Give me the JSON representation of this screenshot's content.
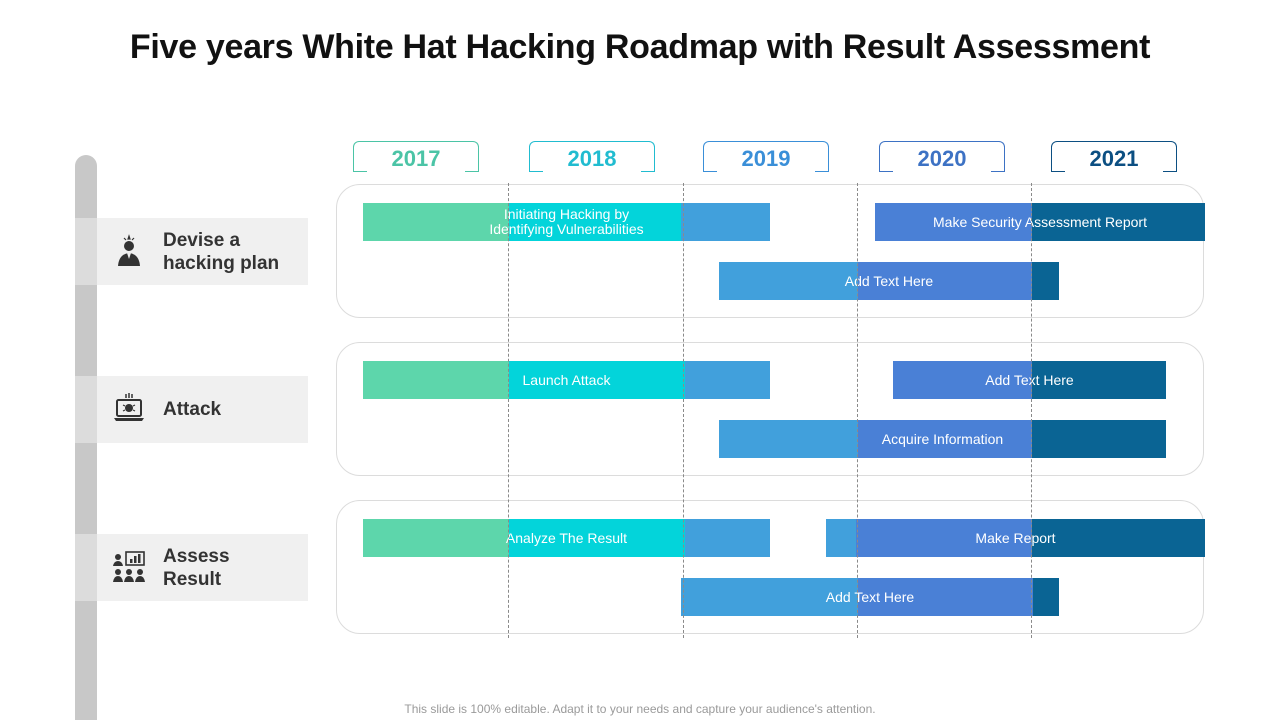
{
  "title": "Five years White Hat Hacking Roadmap with Result Assessment",
  "years": [
    {
      "label": "2017",
      "color": "#4bc4a6"
    },
    {
      "label": "2018",
      "color": "#21bcd0"
    },
    {
      "label": "2019",
      "color": "#3a8fd8"
    },
    {
      "label": "2020",
      "color": "#3d72c4"
    },
    {
      "label": "2021",
      "color": "#0c4f82"
    }
  ],
  "categories": [
    {
      "label": "Devise a\nhacking plan",
      "icon": "hacker-person-icon"
    },
    {
      "label": "Attack",
      "icon": "laptop-bug-icon"
    },
    {
      "label": "Assess\nResult",
      "icon": "team-chart-icon"
    }
  ],
  "palette": {
    "green": "#5dd6ab",
    "cyan": "#03d4da",
    "blue": "#41a0dc",
    "royal": "#4a80d6",
    "navy": "#0a6494"
  },
  "bars": [
    {
      "label": "Initiating Hacking by\nIdentifying Vulnerabilities",
      "lane": 0
    },
    {
      "label": "Make Security Assessment Report",
      "lane": 0
    },
    {
      "label": "Add Text Here",
      "lane": 0
    },
    {
      "label": "Launch Attack",
      "lane": 1
    },
    {
      "label": "Add Text Here",
      "lane": 1
    },
    {
      "label": "Acquire Information",
      "lane": 1
    },
    {
      "label": "Analyze  The Result",
      "lane": 2
    },
    {
      "label": "Make Report",
      "lane": 2
    },
    {
      "label": "Add Text Here",
      "lane": 2
    }
  ],
  "footer": "This slide is 100% editable. Adapt it to your needs and capture your audience's attention."
}
